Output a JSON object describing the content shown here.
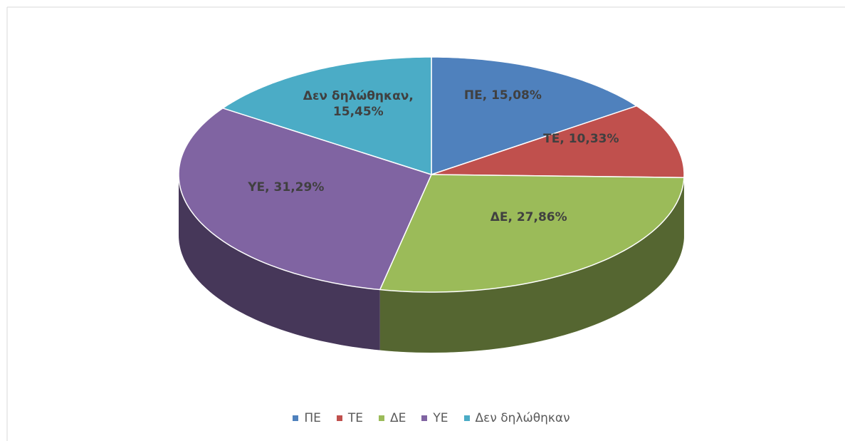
{
  "chart_data": {
    "type": "pie",
    "categories": [
      "ΠΕ",
      "ΤΕ",
      "ΔΕ",
      "ΥΕ",
      "Δεν δηλώθηκαν"
    ],
    "values": [
      15.08,
      10.33,
      27.86,
      31.29,
      15.45
    ],
    "value_labels": [
      "ΠΕ, 15,08%",
      "ΤΕ, 10,33%",
      "ΔΕ, 27,86%",
      "ΥΕ, 31,29%",
      "Δεν δηλώθηκαν, 15,45%"
    ],
    "colors": [
      "#4f81bd",
      "#c0504d",
      "#9bbb59",
      "#8064a2",
      "#4bacc6"
    ],
    "legend": "bottom",
    "three_d": true
  }
}
